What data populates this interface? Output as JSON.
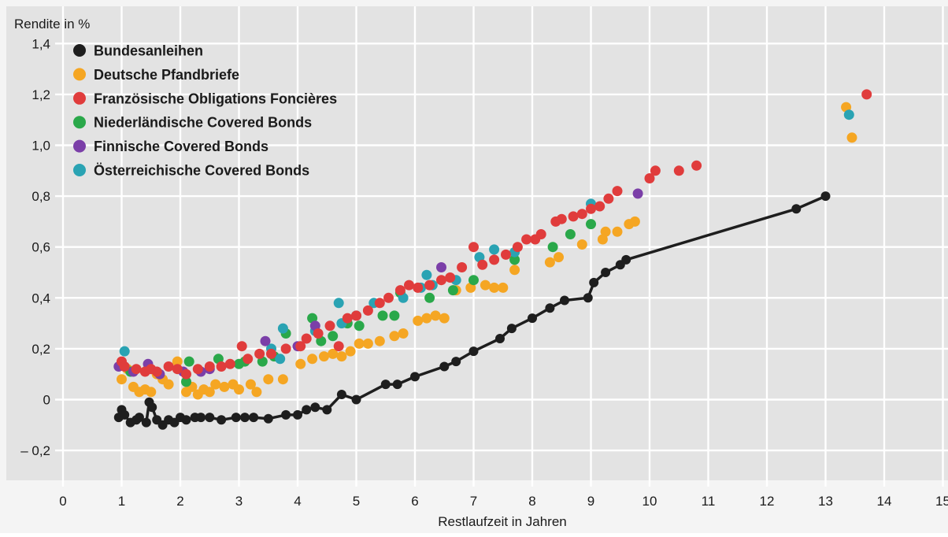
{
  "chart_data": {
    "type": "scatter",
    "title": "",
    "ylabel": "Rendite in %",
    "xlabel": "Restlaufzeit in Jahren",
    "xlim": [
      0,
      15
    ],
    "ylim": [
      -0.25,
      1.45
    ],
    "x_ticks": [
      0,
      1,
      2,
      3,
      4,
      5,
      6,
      7,
      8,
      9,
      10,
      11,
      12,
      13,
      14,
      15
    ],
    "y_ticks": [
      -0.2,
      0,
      0.2,
      0.4,
      0.6,
      0.8,
      1.0,
      1.2,
      1.4
    ],
    "y_tick_labels": [
      "– 0,2",
      "0",
      "0,2",
      "0,4",
      "0,6",
      "0,8",
      "1,0",
      "1,2",
      "1,4"
    ],
    "grid": "vertical and horizontal lines (white)",
    "legend_position": "top-left",
    "colors": {
      "background": "#e3e3e3",
      "grid": "#ffffff"
    },
    "series": [
      {
        "name": "Bundesanleihen",
        "color": "#1e1e1e",
        "style": "line-with-markers",
        "points": [
          [
            0.95,
            -0.07
          ],
          [
            1.0,
            -0.04
          ],
          [
            1.05,
            -0.06
          ],
          [
            1.15,
            -0.09
          ],
          [
            1.25,
            -0.08
          ],
          [
            1.3,
            -0.07
          ],
          [
            1.42,
            -0.09
          ],
          [
            1.47,
            -0.01
          ],
          [
            1.52,
            -0.03
          ],
          [
            1.6,
            -0.08
          ],
          [
            1.7,
            -0.1
          ],
          [
            1.8,
            -0.08
          ],
          [
            1.9,
            -0.09
          ],
          [
            2.0,
            -0.07
          ],
          [
            2.1,
            -0.08
          ],
          [
            2.25,
            -0.07
          ],
          [
            2.35,
            -0.07
          ],
          [
            2.5,
            -0.07
          ],
          [
            2.7,
            -0.08
          ],
          [
            2.95,
            -0.07
          ],
          [
            3.1,
            -0.07
          ],
          [
            3.25,
            -0.07
          ],
          [
            3.5,
            -0.075
          ],
          [
            3.8,
            -0.06
          ],
          [
            4.0,
            -0.06
          ],
          [
            4.15,
            -0.04
          ],
          [
            4.3,
            -0.03
          ],
          [
            4.5,
            -0.04
          ],
          [
            4.75,
            0.02
          ],
          [
            5.0,
            0.0
          ],
          [
            5.5,
            0.06
          ],
          [
            5.7,
            0.06
          ],
          [
            6.0,
            0.09
          ],
          [
            6.5,
            0.13
          ],
          [
            6.7,
            0.15
          ],
          [
            7.0,
            0.19
          ],
          [
            7.45,
            0.24
          ],
          [
            7.65,
            0.28
          ],
          [
            8.0,
            0.32
          ],
          [
            8.3,
            0.36
          ],
          [
            8.55,
            0.39
          ],
          [
            8.95,
            0.4
          ],
          [
            9.05,
            0.46
          ],
          [
            9.25,
            0.5
          ],
          [
            9.5,
            0.53
          ],
          [
            9.6,
            0.55
          ],
          [
            12.5,
            0.75
          ],
          [
            13.0,
            0.8
          ]
        ]
      },
      {
        "name": "Deutsche Pfandbriefe",
        "color": "#f5a623",
        "style": "markers",
        "points": [
          [
            1.0,
            0.08
          ],
          [
            1.1,
            0.12
          ],
          [
            1.2,
            0.05
          ],
          [
            1.3,
            0.03
          ],
          [
            1.4,
            0.04
          ],
          [
            1.5,
            0.03
          ],
          [
            1.6,
            0.1
          ],
          [
            1.7,
            0.08
          ],
          [
            1.8,
            0.06
          ],
          [
            1.95,
            0.15
          ],
          [
            2.1,
            0.03
          ],
          [
            2.2,
            0.05
          ],
          [
            2.3,
            0.02
          ],
          [
            2.4,
            0.04
          ],
          [
            2.5,
            0.03
          ],
          [
            2.6,
            0.06
          ],
          [
            2.75,
            0.05
          ],
          [
            2.9,
            0.06
          ],
          [
            3.0,
            0.04
          ],
          [
            3.2,
            0.06
          ],
          [
            3.3,
            0.03
          ],
          [
            3.5,
            0.08
          ],
          [
            3.75,
            0.08
          ],
          [
            4.05,
            0.14
          ],
          [
            4.25,
            0.16
          ],
          [
            4.45,
            0.17
          ],
          [
            4.6,
            0.18
          ],
          [
            4.75,
            0.17
          ],
          [
            4.9,
            0.19
          ],
          [
            5.05,
            0.22
          ],
          [
            5.2,
            0.22
          ],
          [
            5.4,
            0.23
          ],
          [
            5.65,
            0.25
          ],
          [
            5.8,
            0.26
          ],
          [
            6.05,
            0.31
          ],
          [
            6.2,
            0.32
          ],
          [
            6.35,
            0.33
          ],
          [
            6.5,
            0.32
          ],
          [
            6.7,
            0.43
          ],
          [
            6.95,
            0.44
          ],
          [
            7.2,
            0.45
          ],
          [
            7.35,
            0.44
          ],
          [
            7.5,
            0.44
          ],
          [
            7.7,
            0.51
          ],
          [
            8.3,
            0.54
          ],
          [
            8.45,
            0.56
          ],
          [
            8.85,
            0.61
          ],
          [
            9.2,
            0.63
          ],
          [
            9.25,
            0.66
          ],
          [
            9.45,
            0.66
          ],
          [
            9.65,
            0.69
          ],
          [
            9.75,
            0.7
          ],
          [
            13.35,
            1.15
          ],
          [
            13.45,
            1.03
          ]
        ]
      },
      {
        "name": "Französische Obligations Foncières",
        "color": "#e03c3c",
        "style": "markers",
        "points": [
          [
            1.0,
            0.15
          ],
          [
            1.05,
            0.13
          ],
          [
            1.25,
            0.12
          ],
          [
            1.4,
            0.11
          ],
          [
            1.5,
            0.12
          ],
          [
            1.6,
            0.11
          ],
          [
            1.8,
            0.13
          ],
          [
            1.95,
            0.12
          ],
          [
            2.1,
            0.1
          ],
          [
            2.3,
            0.12
          ],
          [
            2.5,
            0.13
          ],
          [
            2.7,
            0.13
          ],
          [
            2.85,
            0.14
          ],
          [
            3.05,
            0.21
          ],
          [
            3.15,
            0.16
          ],
          [
            3.35,
            0.18
          ],
          [
            3.55,
            0.18
          ],
          [
            3.8,
            0.2
          ],
          [
            4.05,
            0.21
          ],
          [
            4.15,
            0.24
          ],
          [
            4.35,
            0.26
          ],
          [
            4.55,
            0.29
          ],
          [
            4.7,
            0.21
          ],
          [
            4.85,
            0.32
          ],
          [
            5.0,
            0.33
          ],
          [
            5.2,
            0.35
          ],
          [
            5.4,
            0.38
          ],
          [
            5.55,
            0.4
          ],
          [
            5.75,
            0.43
          ],
          [
            5.9,
            0.45
          ],
          [
            6.05,
            0.44
          ],
          [
            6.25,
            0.45
          ],
          [
            6.45,
            0.47
          ],
          [
            6.6,
            0.48
          ],
          [
            6.8,
            0.52
          ],
          [
            7.0,
            0.6
          ],
          [
            7.15,
            0.53
          ],
          [
            7.35,
            0.55
          ],
          [
            7.55,
            0.57
          ],
          [
            7.75,
            0.6
          ],
          [
            7.9,
            0.63
          ],
          [
            8.05,
            0.63
          ],
          [
            8.15,
            0.65
          ],
          [
            8.4,
            0.7
          ],
          [
            8.5,
            0.71
          ],
          [
            8.7,
            0.72
          ],
          [
            8.85,
            0.73
          ],
          [
            9.0,
            0.75
          ],
          [
            9.15,
            0.76
          ],
          [
            9.3,
            0.79
          ],
          [
            9.45,
            0.82
          ],
          [
            10.0,
            0.87
          ],
          [
            10.1,
            0.9
          ],
          [
            10.5,
            0.9
          ],
          [
            10.8,
            0.92
          ],
          [
            13.7,
            1.2
          ]
        ]
      },
      {
        "name": "Niederländische Covered Bonds",
        "color": "#2aa84a",
        "style": "markers",
        "points": [
          [
            1.15,
            0.11
          ],
          [
            2.1,
            0.07
          ],
          [
            2.15,
            0.15
          ],
          [
            2.65,
            0.16
          ],
          [
            3.0,
            0.14
          ],
          [
            3.1,
            0.15
          ],
          [
            3.4,
            0.15
          ],
          [
            3.6,
            0.17
          ],
          [
            3.8,
            0.26
          ],
          [
            4.25,
            0.32
          ],
          [
            4.4,
            0.23
          ],
          [
            4.6,
            0.25
          ],
          [
            4.85,
            0.3
          ],
          [
            5.05,
            0.29
          ],
          [
            5.45,
            0.33
          ],
          [
            5.65,
            0.33
          ],
          [
            5.75,
            0.42
          ],
          [
            6.25,
            0.4
          ],
          [
            6.65,
            0.43
          ],
          [
            7.0,
            0.47
          ],
          [
            7.7,
            0.55
          ],
          [
            8.35,
            0.6
          ],
          [
            8.65,
            0.65
          ],
          [
            9.0,
            0.69
          ]
        ]
      },
      {
        "name": "Finnische Covered Bonds",
        "color": "#7b3fa8",
        "style": "markers",
        "points": [
          [
            0.95,
            0.13
          ],
          [
            1.2,
            0.11
          ],
          [
            1.45,
            0.14
          ],
          [
            1.65,
            0.1
          ],
          [
            2.05,
            0.11
          ],
          [
            2.35,
            0.11
          ],
          [
            2.5,
            0.12
          ],
          [
            3.45,
            0.23
          ],
          [
            4.0,
            0.21
          ],
          [
            4.3,
            0.29
          ],
          [
            6.45,
            0.52
          ],
          [
            9.8,
            0.81
          ]
        ]
      },
      {
        "name": "Österreichische Covered Bonds",
        "color": "#2aa3b3",
        "style": "markers",
        "points": [
          [
            1.05,
            0.19
          ],
          [
            1.45,
            0.12
          ],
          [
            3.55,
            0.2
          ],
          [
            3.7,
            0.16
          ],
          [
            3.75,
            0.28
          ],
          [
            4.3,
            0.27
          ],
          [
            4.7,
            0.38
          ],
          [
            4.75,
            0.3
          ],
          [
            5.0,
            0.33
          ],
          [
            5.3,
            0.38
          ],
          [
            5.8,
            0.4
          ],
          [
            6.1,
            0.44
          ],
          [
            6.2,
            0.49
          ],
          [
            6.3,
            0.45
          ],
          [
            6.7,
            0.47
          ],
          [
            7.1,
            0.56
          ],
          [
            7.35,
            0.59
          ],
          [
            7.7,
            0.58
          ],
          [
            9.0,
            0.77
          ],
          [
            13.4,
            1.12
          ]
        ]
      }
    ]
  }
}
